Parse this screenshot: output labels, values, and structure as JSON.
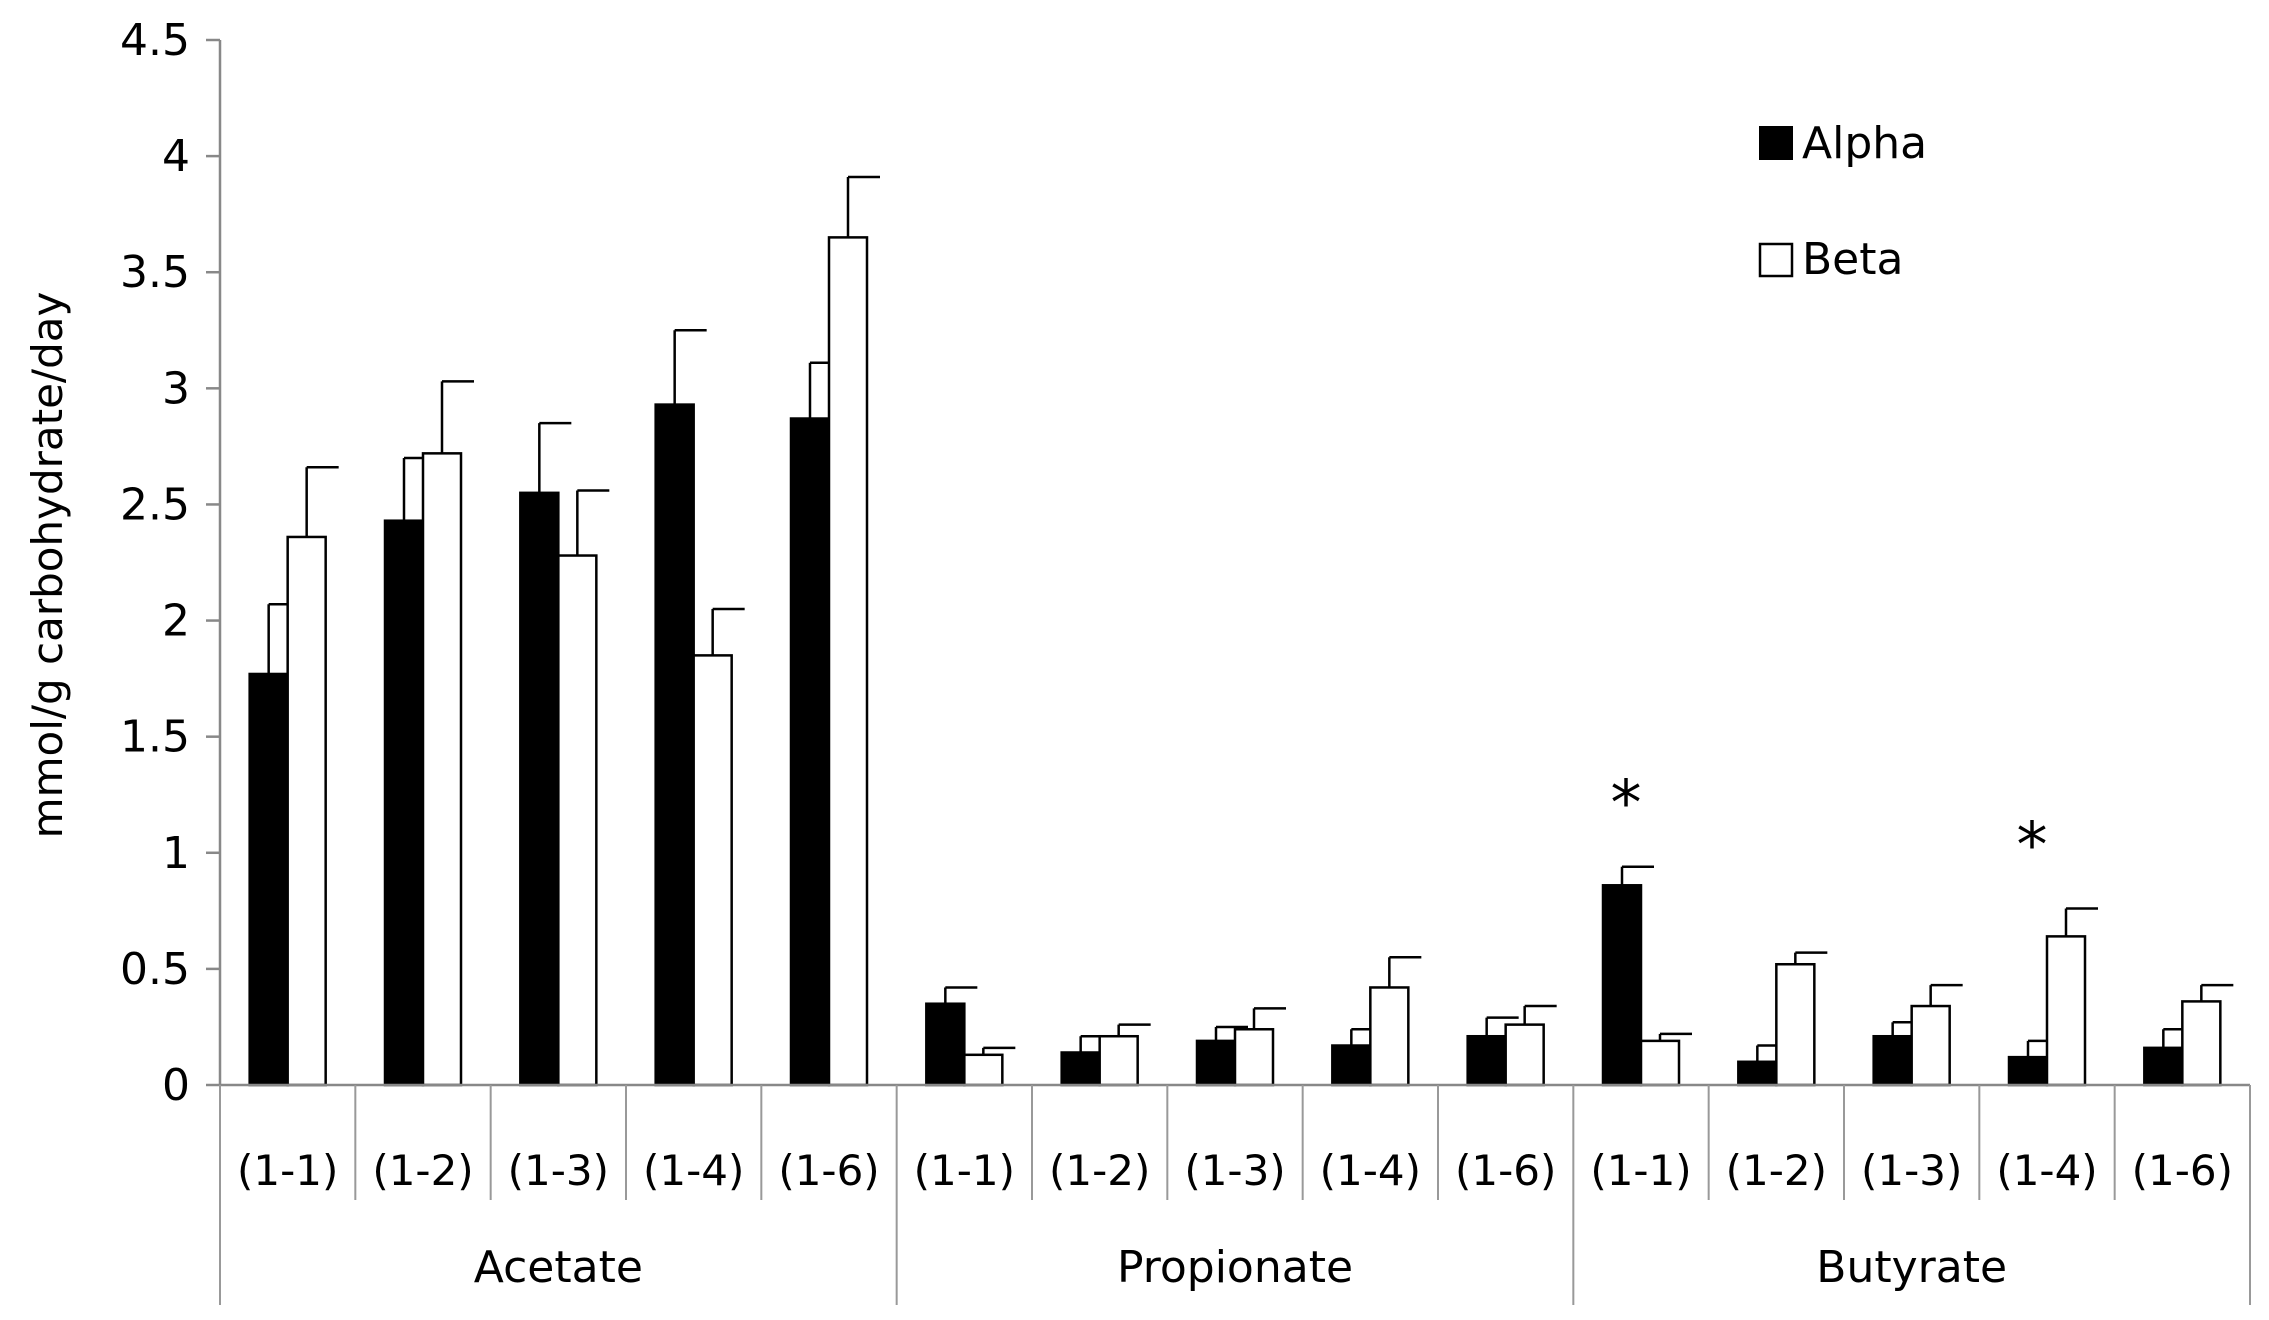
{
  "chart_data": {
    "type": "bar",
    "title": "",
    "xlabel": "",
    "ylabel": "mmol/g carbohydrate/day",
    "ylim": [
      0,
      4.5
    ],
    "yticks": [
      "0",
      "0.5",
      "1",
      "1.5",
      "2",
      "2.5",
      "3",
      "3.5",
      "4",
      "4.5"
    ],
    "grid": false,
    "legend_position": "top-right",
    "groups": [
      {
        "name": "Acetate",
        "categories": [
          "(1-1)",
          "(1-2)",
          "(1-3)",
          "(1-4)",
          "(1-6)"
        ]
      },
      {
        "name": "Propionate",
        "categories": [
          "(1-1)",
          "(1-2)",
          "(1-3)",
          "(1-4)",
          "(1-6)"
        ]
      },
      {
        "name": "Butyrate",
        "categories": [
          "(1-1)",
          "(1-2)",
          "(1-3)",
          "(1-4)",
          "(1-6)"
        ]
      }
    ],
    "series": [
      {
        "name": "Alpha",
        "fill": "#000000",
        "values": [
          1.77,
          2.43,
          2.55,
          2.93,
          2.87,
          0.35,
          0.14,
          0.19,
          0.17,
          0.21,
          0.86,
          0.1,
          0.21,
          0.12,
          0.16
        ],
        "errors": [
          0.3,
          0.27,
          0.3,
          0.32,
          0.24,
          0.07,
          0.07,
          0.06,
          0.07,
          0.08,
          0.08,
          0.07,
          0.06,
          0.07,
          0.08
        ]
      },
      {
        "name": "Beta",
        "fill": "#ffffff",
        "values": [
          2.36,
          2.72,
          2.28,
          1.85,
          3.65,
          0.13,
          0.21,
          0.24,
          0.42,
          0.26,
          0.19,
          0.52,
          0.34,
          0.64,
          0.36
        ],
        "errors": [
          0.3,
          0.31,
          0.28,
          0.2,
          0.26,
          0.03,
          0.05,
          0.09,
          0.13,
          0.08,
          0.03,
          0.05,
          0.09,
          0.12,
          0.07
        ]
      }
    ],
    "annotations": [
      {
        "text": "*",
        "group": 2,
        "category": 0
      },
      {
        "text": "*",
        "group": 2,
        "category": 3
      }
    ]
  }
}
